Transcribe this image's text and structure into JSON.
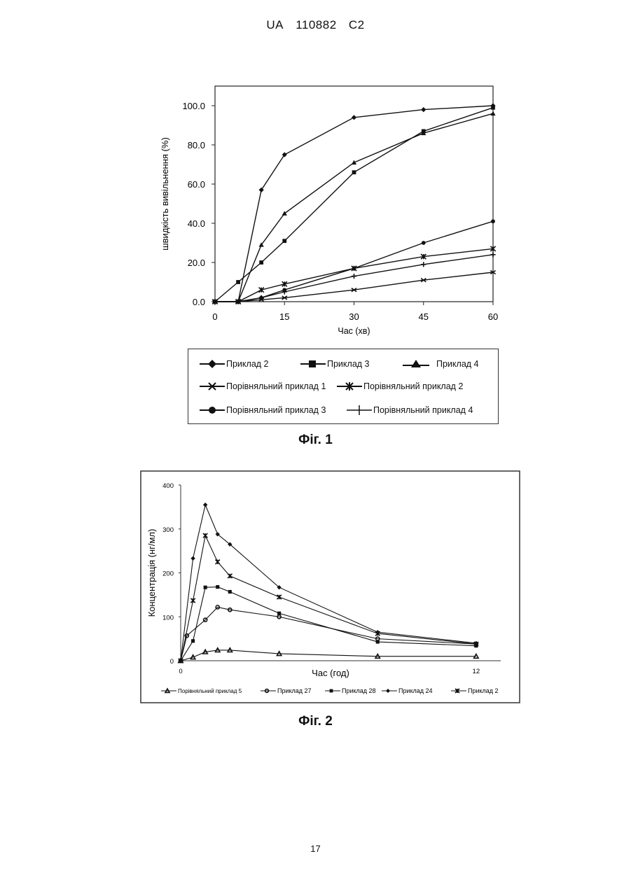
{
  "header": {
    "country": "UA",
    "number": "110882",
    "kind": "C2"
  },
  "page_number": "17",
  "figures": [
    {
      "caption": "Фіг. 1"
    },
    {
      "caption": "Фіг. 2"
    }
  ],
  "chart_data": [
    {
      "type": "line",
      "title": "",
      "xlabel": "Час (хв)",
      "ylabel": "швидкість вивільнення (%)",
      "xlim": [
        0,
        60
      ],
      "ylim": [
        0,
        110
      ],
      "x_ticks": [
        "0",
        "15",
        "30",
        "45",
        "60"
      ],
      "y_ticks": [
        "0.0",
        "20.0",
        "40.0",
        "60.0",
        "80.0",
        "100.0"
      ],
      "legend_position": "bottom-outside",
      "series": [
        {
          "name": "Приклад 2",
          "marker": "diamond",
          "x": [
            0,
            5,
            10,
            15,
            30,
            45,
            60
          ],
          "y": [
            0,
            0,
            57,
            75,
            94,
            98,
            100
          ]
        },
        {
          "name": "Приклад 3",
          "marker": "square",
          "x": [
            0,
            5,
            10,
            15,
            30,
            45,
            60
          ],
          "y": [
            0,
            10,
            20,
            31,
            66,
            87,
            99
          ]
        },
        {
          "name": "Приклад 4",
          "marker": "triangle",
          "x": [
            0,
            5,
            10,
            15,
            30,
            45,
            60
          ],
          "y": [
            0,
            0,
            29,
            45,
            71,
            86,
            96
          ]
        },
        {
          "name": "Порівняльний приклад 1",
          "marker": "x",
          "x": [
            0,
            5,
            10,
            15,
            30,
            45,
            60
          ],
          "y": [
            0,
            0,
            1,
            2,
            6,
            11,
            15
          ]
        },
        {
          "name": "Порівняльний приклад 2",
          "marker": "asterisk",
          "x": [
            0,
            5,
            10,
            15,
            30,
            45,
            60
          ],
          "y": [
            0,
            0,
            6,
            9,
            17,
            23,
            27
          ]
        },
        {
          "name": "Порівняльний приклад 3",
          "marker": "circle",
          "x": [
            0,
            5,
            10,
            15,
            30,
            45,
            60
          ],
          "y": [
            0,
            0,
            2,
            6,
            17,
            30,
            41
          ]
        },
        {
          "name": "Порівняльний приклад 4",
          "marker": "plus",
          "x": [
            0,
            5,
            10,
            15,
            30,
            45,
            60
          ],
          "y": [
            0,
            0,
            2,
            5,
            13,
            19,
            24
          ]
        }
      ]
    },
    {
      "type": "line",
      "title": "",
      "xlabel": "Час (год)",
      "ylabel": "Концентрація (нг/мл)",
      "xlim": [
        0,
        13
      ],
      "ylim": [
        0,
        400
      ],
      "x_ticks": [
        "0",
        "12"
      ],
      "y_ticks": [
        "0",
        "100",
        "200",
        "300",
        "400"
      ],
      "legend_position": "bottom-outside",
      "series": [
        {
          "name": "Порівняльний приклад 5",
          "marker": "triangle-open",
          "x": [
            0,
            0.5,
            1,
            1.5,
            2,
            4,
            8,
            12
          ],
          "y": [
            0,
            8,
            20,
            24,
            24,
            16,
            10,
            10
          ]
        },
        {
          "name": "Приклад 27",
          "marker": "circle-open",
          "x": [
            0,
            0.25,
            1,
            1.5,
            2,
            4,
            8,
            12
          ],
          "y": [
            0,
            57,
            93,
            122,
            116,
            100,
            50,
            38
          ]
        },
        {
          "name": "Приклад 28",
          "marker": "square",
          "x": [
            0,
            0.5,
            1,
            1.5,
            2,
            4,
            8,
            12
          ],
          "y": [
            0,
            45,
            167,
            168,
            157,
            108,
            43,
            34
          ]
        },
        {
          "name": "Приклад 24",
          "marker": "diamond",
          "x": [
            0,
            0.5,
            1,
            1.5,
            2,
            4,
            8,
            12
          ],
          "y": [
            0,
            233,
            355,
            288,
            265,
            167,
            65,
            40
          ]
        },
        {
          "name": "Приклад 2",
          "marker": "asterisk",
          "x": [
            0,
            0.5,
            1,
            1.5,
            2,
            4,
            8,
            12
          ],
          "y": [
            0,
            137,
            285,
            225,
            193,
            145,
            62,
            38
          ]
        }
      ]
    }
  ]
}
